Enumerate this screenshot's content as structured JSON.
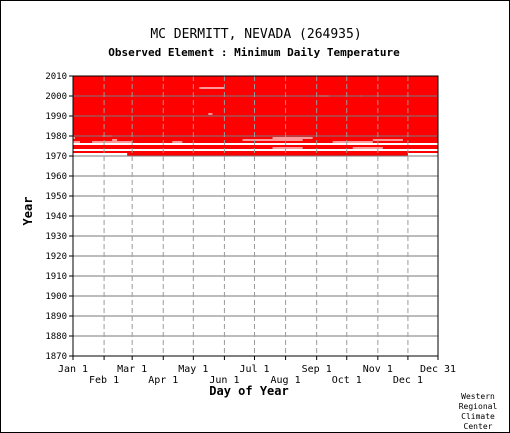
{
  "chart_data": {
    "type": "heatmap",
    "title": "MC DERMITT, NEVADA   (264935)",
    "subtitle": "Observed Element : Minimum Daily Temperature",
    "xlabel": "Day of Year",
    "ylabel": "Year",
    "x_ticks_top": [
      "Jan 1",
      "Mar 1",
      "May 1",
      "Jul 1",
      "Sep 1",
      "Nov 1",
      "Dec 31"
    ],
    "x_ticks_bottom": [
      "Feb 1",
      "Apr 1",
      "Jun 1",
      "Aug 1",
      "Oct 1",
      "Dec 1"
    ],
    "x_tick_days_top": [
      1,
      60,
      121,
      182,
      244,
      305,
      365
    ],
    "x_tick_days_bottom": [
      32,
      91,
      152,
      213,
      274,
      335
    ],
    "y_ticks": [
      2010,
      2000,
      1990,
      1980,
      1970,
      1960,
      1950,
      1940,
      1930,
      1920,
      1910,
      1900,
      1890,
      1880,
      1870
    ],
    "xlim": [
      1,
      365
    ],
    "ylim": [
      1870,
      2010
    ],
    "data_color": "#ff0000",
    "grid": true,
    "observed_blocks": [
      {
        "year_start": 1971.5,
        "year_end": 1972.5,
        "day_start": 1,
        "day_end": 365
      },
      {
        "year_start": 1973.5,
        "year_end": 1975.5,
        "day_start": 1,
        "day_end": 365
      },
      {
        "year_start": 1976.5,
        "year_end": 2010,
        "day_start": 1,
        "day_end": 365
      },
      {
        "year_start": 1970,
        "year_end": 1971.5,
        "day_start": 55,
        "day_end": 335
      }
    ],
    "missing_segments": [
      {
        "year": 1977,
        "day_start": 1,
        "day_end": 8
      },
      {
        "year": 1977,
        "day_start": 20,
        "day_end": 60
      },
      {
        "year": 1978,
        "day_start": 40,
        "day_end": 45
      },
      {
        "year": 1979,
        "day_start": 1,
        "day_end": 3
      },
      {
        "year": 1980,
        "day_start": 30,
        "day_end": 40
      },
      {
        "year": 1976,
        "day_start": 110,
        "day_end": 200
      },
      {
        "year": 1977,
        "day_start": 100,
        "day_end": 110
      },
      {
        "year": 1978,
        "day_start": 170,
        "day_end": 230
      },
      {
        "year": 1979,
        "day_start": 200,
        "day_end": 240
      },
      {
        "year": 1977,
        "day_start": 260,
        "day_end": 300
      },
      {
        "year": 1978,
        "day_start": 300,
        "day_end": 330
      },
      {
        "year": 1976,
        "day_start": 330,
        "day_end": 365
      },
      {
        "year": 1974,
        "day_start": 200,
        "day_end": 230
      },
      {
        "year": 1974,
        "day_start": 280,
        "day_end": 310
      },
      {
        "year": 1991,
        "day_start": 136,
        "day_end": 140
      },
      {
        "year": 2004,
        "day_start": 127,
        "day_end": 152
      },
      {
        "year": 2000,
        "day_start": 246,
        "day_end": 256
      },
      {
        "year": 2000,
        "day_start": 288,
        "day_end": 289
      }
    ]
  },
  "credit_lines": [
    "Western",
    "Regional",
    "Climate",
    "Center"
  ]
}
